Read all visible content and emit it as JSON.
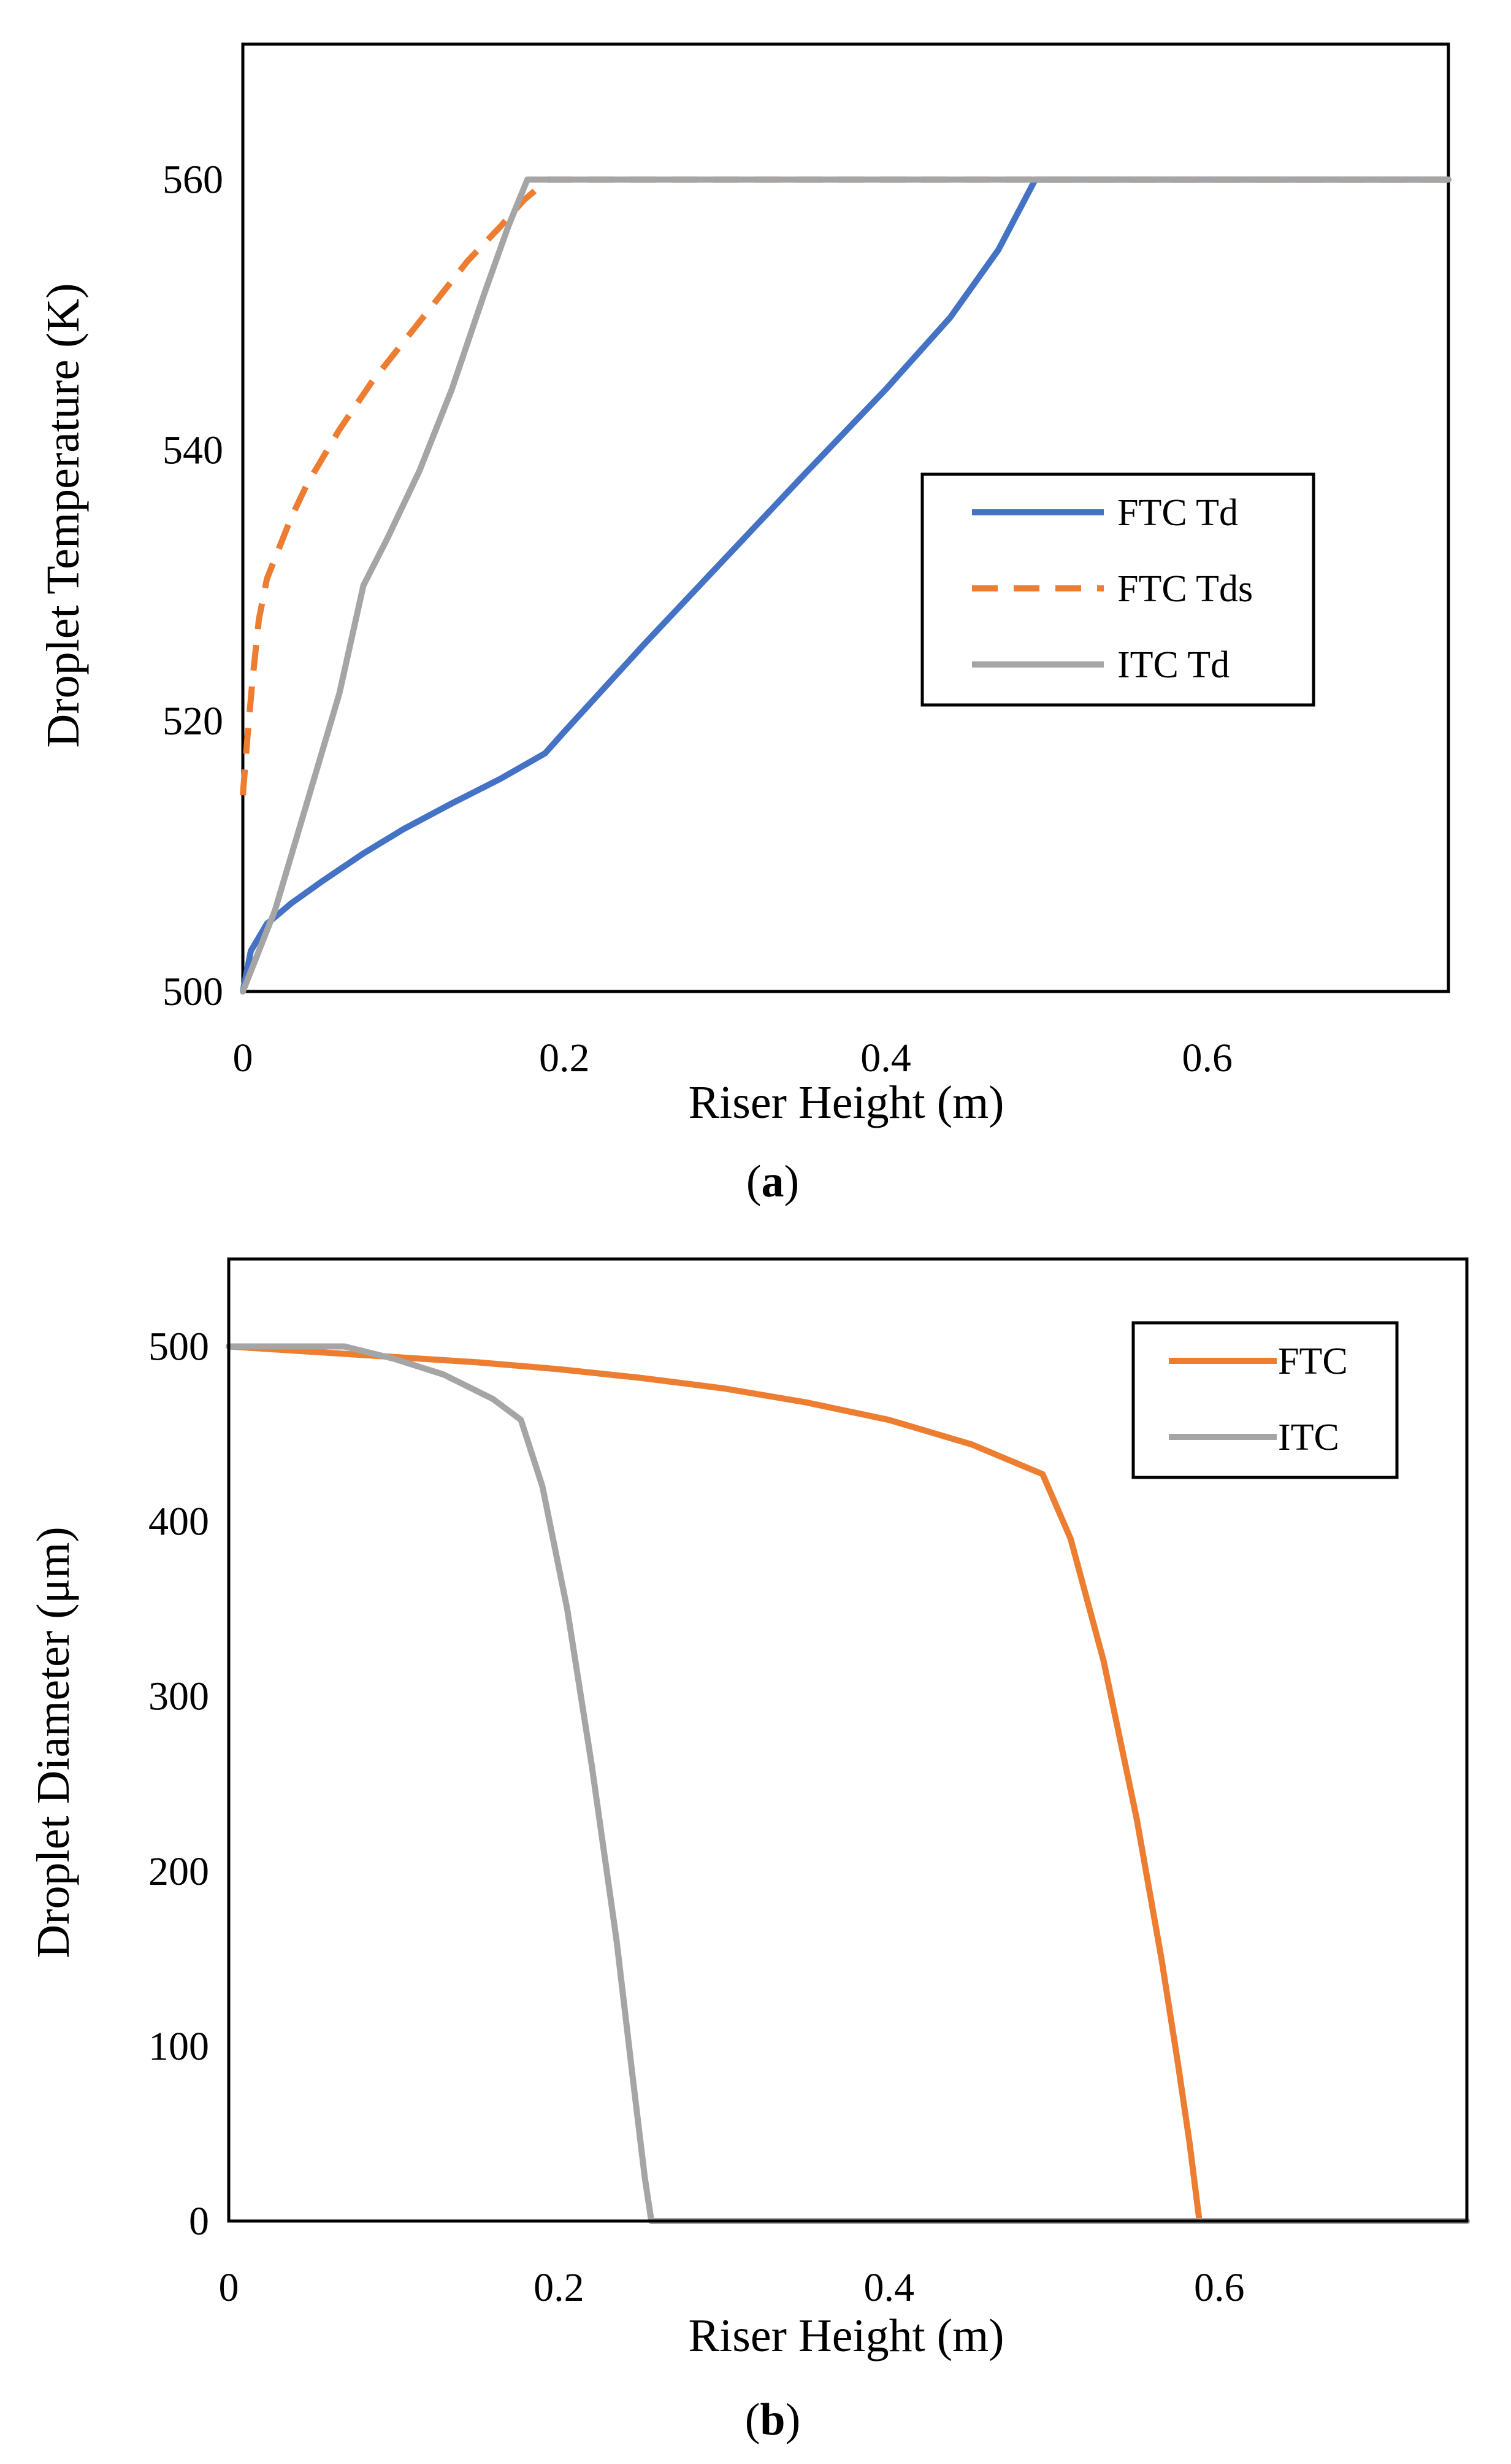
{
  "chart_data": [
    {
      "id": "a",
      "type": "line",
      "caption_letter": "a",
      "xlabel": "Riser Height (m)",
      "ylabel": "Droplet Temperature (K)",
      "xlim": [
        0,
        0.75
      ],
      "ylim": [
        500,
        570
      ],
      "xticks": [
        0,
        0.2,
        0.4,
        0.6
      ],
      "xtick_labels": [
        "0",
        "0.2",
        "0.4",
        "0.6"
      ],
      "yticks": [
        500,
        520,
        540,
        560
      ],
      "ytick_labels": [
        "500",
        "520",
        "540",
        "560"
      ],
      "grid": false,
      "legend_position": "right",
      "series": [
        {
          "name": "FTC Td",
          "color": "#4472C4",
          "dash": "solid",
          "x": [
            0,
            0.005,
            0.015,
            0.03,
            0.05,
            0.075,
            0.1,
            0.13,
            0.16,
            0.188,
            0.2,
            0.25,
            0.3,
            0.35,
            0.4,
            0.44,
            0.47,
            0.493,
            0.55,
            0.6,
            0.65,
            0.7,
            0.75
          ],
          "y": [
            500,
            503,
            505,
            506.5,
            508.2,
            510.2,
            512.0,
            513.9,
            515.7,
            517.6,
            519.2,
            525.7,
            532.0,
            538.3,
            544.5,
            549.8,
            554.8,
            560,
            560,
            560,
            560,
            560,
            560
          ]
        },
        {
          "name": "FTC Tds",
          "color": "#ED7D31",
          "dash": "dashed",
          "x": [
            0,
            0.003,
            0.006,
            0.01,
            0.015,
            0.02,
            0.03,
            0.04,
            0.06,
            0.08,
            0.1,
            0.12,
            0.14,
            0.16,
            0.175,
            0.19,
            0.25,
            0.3,
            0.4,
            0.5,
            0.6,
            0.7,
            0.75
          ],
          "y": [
            514.5,
            519,
            523,
            527.5,
            530.5,
            532,
            535,
            537.5,
            541.5,
            545,
            548,
            551,
            554,
            556.5,
            558.5,
            560,
            560,
            560,
            560,
            560,
            560,
            560,
            560
          ]
        },
        {
          "name": "ITC Td",
          "color": "#A5A5A5",
          "dash": "solid",
          "x": [
            0,
            0.02,
            0.04,
            0.06,
            0.075,
            0.09,
            0.11,
            0.13,
            0.15,
            0.165,
            0.177,
            0.2,
            0.3,
            0.4,
            0.5,
            0.6,
            0.7,
            0.75
          ],
          "y": [
            500,
            506,
            514,
            522,
            530,
            533.5,
            538.5,
            544.5,
            551.5,
            556.5,
            560,
            560,
            560,
            560,
            560,
            560,
            560,
            560
          ]
        }
      ]
    },
    {
      "id": "b",
      "type": "line",
      "caption_letter": "b",
      "xlabel": "Riser Height (m)",
      "ylabel": "Droplet Diameter (μm)",
      "xlim": [
        0,
        0.75
      ],
      "ylim": [
        0,
        550
      ],
      "xticks": [
        0,
        0.2,
        0.4,
        0.6
      ],
      "xtick_labels": [
        "0",
        "0.2",
        "0.4",
        "0.6"
      ],
      "yticks": [
        0,
        100,
        200,
        300,
        400,
        500
      ],
      "ytick_labels": [
        "0",
        "100",
        "200",
        "300",
        "400",
        "500"
      ],
      "grid": false,
      "legend_position": "top-right",
      "series": [
        {
          "name": "FTC",
          "color": "#ED7D31",
          "dash": "solid",
          "x": [
            0,
            0.05,
            0.1,
            0.15,
            0.2,
            0.25,
            0.3,
            0.35,
            0.4,
            0.45,
            0.493,
            0.51,
            0.53,
            0.55,
            0.565,
            0.575,
            0.582,
            0.586,
            0.588,
            0.6,
            0.65,
            0.7,
            0.75
          ],
          "y": [
            500,
            497,
            494,
            491,
            487,
            482,
            476,
            468,
            458,
            444,
            427,
            390,
            320,
            230,
            150,
            90,
            45,
            15,
            0,
            0,
            0,
            0,
            0
          ]
        },
        {
          "name": "ITC",
          "color": "#A5A5A5",
          "dash": "solid",
          "x": [
            0,
            0.07,
            0.1,
            0.13,
            0.16,
            0.177,
            0.19,
            0.205,
            0.22,
            0.235,
            0.245,
            0.252,
            0.256,
            0.3,
            0.4,
            0.5,
            0.6,
            0.7,
            0.75
          ],
          "y": [
            500,
            500,
            493,
            484,
            470,
            458,
            420,
            350,
            260,
            160,
            80,
            25,
            0,
            0,
            0,
            0,
            0,
            0,
            0
          ]
        }
      ]
    }
  ]
}
